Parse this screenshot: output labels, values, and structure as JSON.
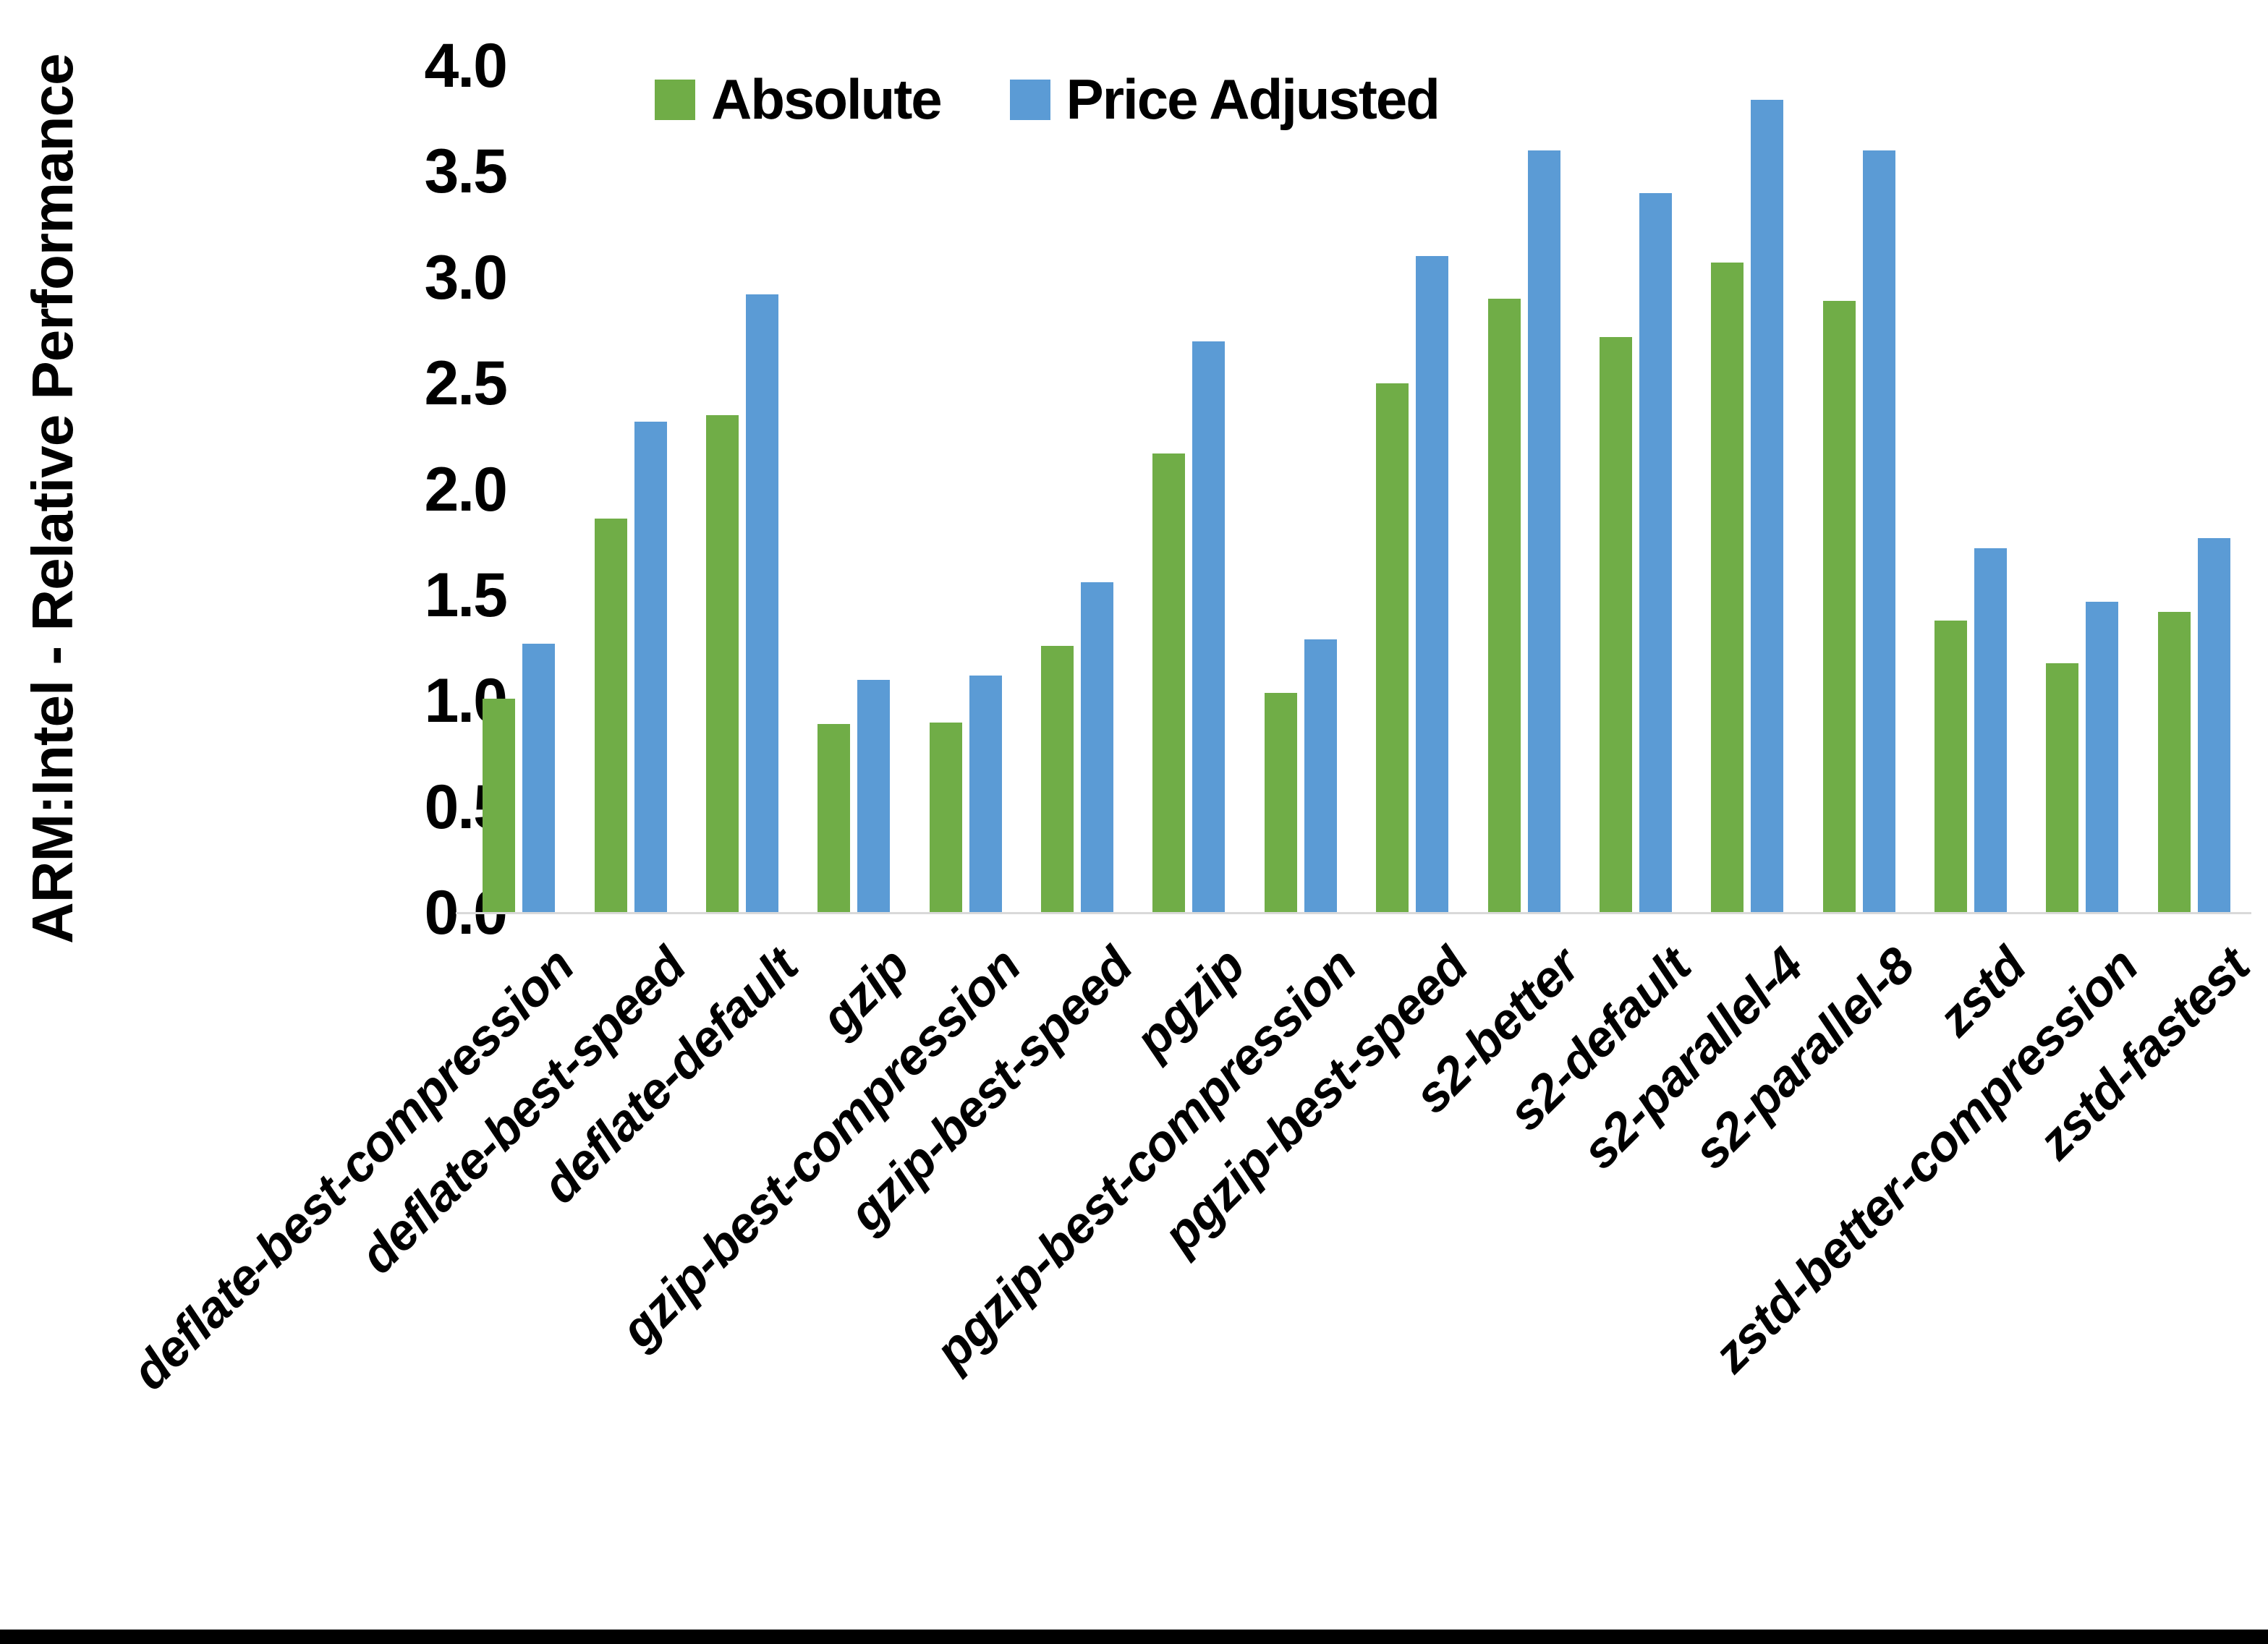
{
  "chart_data": {
    "type": "bar",
    "title": "",
    "ylabel": "ARM:Intel - Relative Performance",
    "xlabel": "",
    "ylim": [
      0.0,
      4.0
    ],
    "ytick_step": 0.5,
    "ytick_labels": [
      "0.0",
      "0.5",
      "1.0",
      "1.5",
      "2.0",
      "2.5",
      "3.0",
      "3.5",
      "4.0"
    ],
    "grid": false,
    "legend_position": "top-center",
    "axis_line_color": "#d9d9d9",
    "background": "#ffffff",
    "bottom_border_color": "#000000",
    "categories": [
      "deflate-best-compression",
      "deflate-best-speed",
      "deflate-default",
      "gzip",
      "gzip-best-compression",
      "gzip-best-speed",
      "pgzip",
      "pgzip-best-compression",
      "pgzip-best-speed",
      "s2-better",
      "s2-default",
      "s2-parallel-4",
      "s2-parallel-8",
      "zstd",
      "zstd-better-compression",
      "zstd-fastest"
    ],
    "series": [
      {
        "name": "Absolute",
        "color": "#70AD47",
        "values": [
          1.01,
          1.86,
          2.35,
          0.89,
          0.9,
          1.26,
          2.17,
          1.04,
          2.5,
          2.9,
          2.72,
          3.07,
          2.89,
          1.38,
          1.18,
          1.42
        ]
      },
      {
        "name": "Price Adjusted",
        "color": "#5B9BD5",
        "values": [
          1.27,
          2.32,
          2.92,
          1.1,
          1.12,
          1.56,
          2.7,
          1.29,
          3.1,
          3.6,
          3.4,
          3.84,
          3.6,
          1.72,
          1.47,
          1.77
        ]
      }
    ]
  }
}
